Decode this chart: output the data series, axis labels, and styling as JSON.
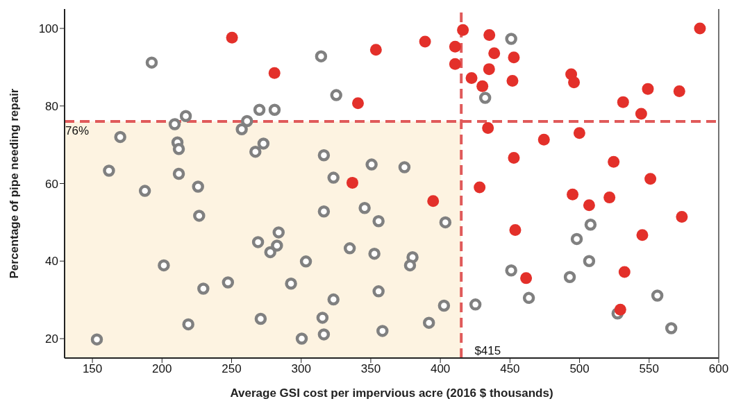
{
  "chart_data": {
    "type": "scatter",
    "xlabel": "Average GSI cost per impervious acre (2016 $ thousands)",
    "ylabel": "Percentage of pipe needing repair",
    "series": [
      {
        "color": "#808080",
        "x": [
          153.2,
          161.9,
          170.0,
          192.6,
          187.7,
          201.3,
          209.1,
          211.1,
          212.1,
          217.1,
          212.1,
          225.9,
          226.7,
          257.3,
          261.1,
          270.0,
          280.9,
          272.9,
          267.1,
          269.0,
          282.6,
          277.8,
          283.8,
          247.4,
          229.7,
          292.7,
          270.9,
          218.9,
          300.4,
          303.4,
          315.3,
          316.3,
          323.2,
          334.9,
          352.6,
          355.6,
          358.4,
          380.0,
          378.2,
          391.8,
          402.6,
          425.2,
          316.3,
          345.6,
          355.6,
          403.6,
          316.3,
          350.6,
          374.2,
          323.2,
          314.3,
          325.2,
          432.2,
          450.9,
          507.9,
          498.0,
          506.9,
          450.9,
          493.0,
          463.6,
          555.9,
          527.3,
          565.9
        ],
        "values": [
          19.8,
          63.3,
          72.0,
          91.2,
          58.1,
          38.9,
          75.3,
          70.6,
          68.9,
          77.4,
          62.5,
          59.2,
          51.7,
          74.0,
          76.1,
          79.0,
          79.0,
          70.3,
          68.2,
          44.9,
          44.0,
          42.3,
          47.4,
          34.5,
          32.9,
          34.2,
          25.1,
          23.7,
          20.0,
          39.9,
          25.4,
          21.1,
          30.1,
          43.3,
          41.9,
          32.2,
          22.0,
          41.0,
          38.9,
          24.1,
          28.5,
          28.8,
          52.8,
          53.7,
          50.3,
          50.0,
          67.3,
          64.9,
          64.2,
          61.5,
          92.8,
          82.8,
          82.1,
          97.3,
          49.4,
          45.7,
          40.0,
          37.6,
          35.9,
          30.5,
          31.1,
          26.5,
          22.7
        ]
      },
      {
        "color": "#e3302a",
        "x": [
          250.3,
          280.8,
          340.8,
          353.7,
          389.0,
          410.6,
          410.6,
          416.2,
          435.2,
          438.7,
          435.0,
          422.4,
          430.2,
          434.2,
          336.8,
          428.2,
          394.8,
          452.8,
          451.8,
          494.0,
          496.0,
          586.5,
          549.1,
          571.7,
          531.3,
          544.3,
          499.9,
          474.4,
          452.8,
          524.5,
          550.9,
          495.0,
          506.9,
          521.5,
          573.5,
          453.8,
          545.1,
          532.3,
          461.6,
          529.3
        ],
        "values": [
          97.6,
          88.5,
          80.7,
          94.5,
          96.6,
          95.3,
          90.8,
          99.6,
          98.3,
          93.6,
          89.5,
          87.2,
          85.1,
          74.3,
          60.2,
          59.0,
          55.5,
          92.5,
          86.5,
          88.2,
          86.1,
          100.0,
          84.4,
          83.8,
          81.0,
          78.0,
          73.0,
          71.3,
          66.6,
          65.6,
          61.2,
          57.2,
          54.4,
          56.4,
          51.4,
          48.0,
          46.7,
          37.2,
          35.6,
          27.5
        ]
      }
    ],
    "xlim": [
      130,
      600
    ],
    "ylim": [
      15,
      105
    ],
    "xticks": [
      150,
      200,
      250,
      300,
      350,
      400,
      450,
      500,
      550,
      600
    ],
    "yticks": [
      20,
      40,
      60,
      80,
      100
    ],
    "ref_lines": [
      {
        "axis": "x",
        "value": 415,
        "label": "$415",
        "color": "#e05a5a",
        "line_style": "dashed"
      },
      {
        "axis": "y",
        "value": 76,
        "label": "76%",
        "color": "#e05a5a",
        "line_style": "dashed"
      }
    ],
    "bands": [
      {
        "axis": "x",
        "from": 130,
        "to": 415,
        "color": "#fdf3e1"
      }
    ],
    "marker": "circle",
    "grid": false
  }
}
